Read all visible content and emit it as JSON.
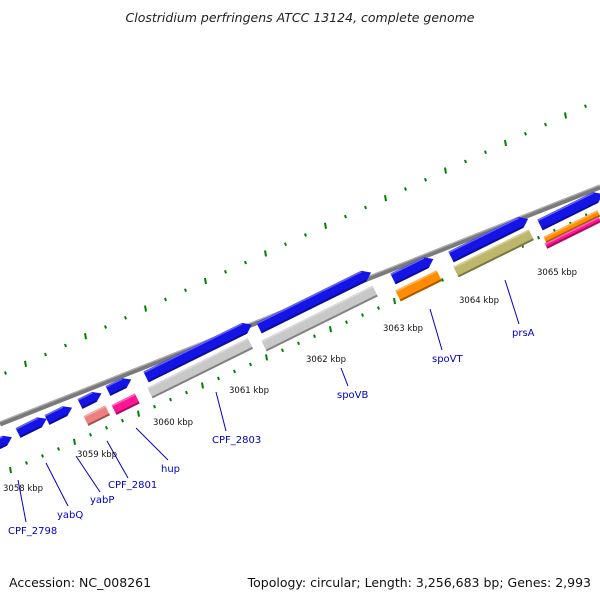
{
  "title": "Clostridium perfringens ATCC 13124, complete genome",
  "footer": {
    "accession": "Accession: NC_008261",
    "topology": "Topology: circular; Length: 3,256,683 bp; Genes: 2,993"
  },
  "kbp_labels": [
    "3058 kbp",
    "3059 kbp",
    "3060 kbp",
    "3061 kbp",
    "3062 kbp",
    "3063 kbp",
    "3064 kbp",
    "3065 kbp"
  ],
  "gene_labels": [
    "CPF_2798",
    "yabQ",
    "yabP",
    "CPF_2801",
    "hup",
    "CPF_2803",
    "spoVB",
    "spoVT",
    "prsA"
  ],
  "colors": {
    "backbone": "#888888",
    "blue": "#1414e6",
    "gray": "#c8c8c8",
    "salmon": "#f08080",
    "magenta": "#ff1493",
    "orange": "#ff8c00",
    "olive": "#bdb76b",
    "tick": "#008000",
    "label": "#0000c8"
  }
}
